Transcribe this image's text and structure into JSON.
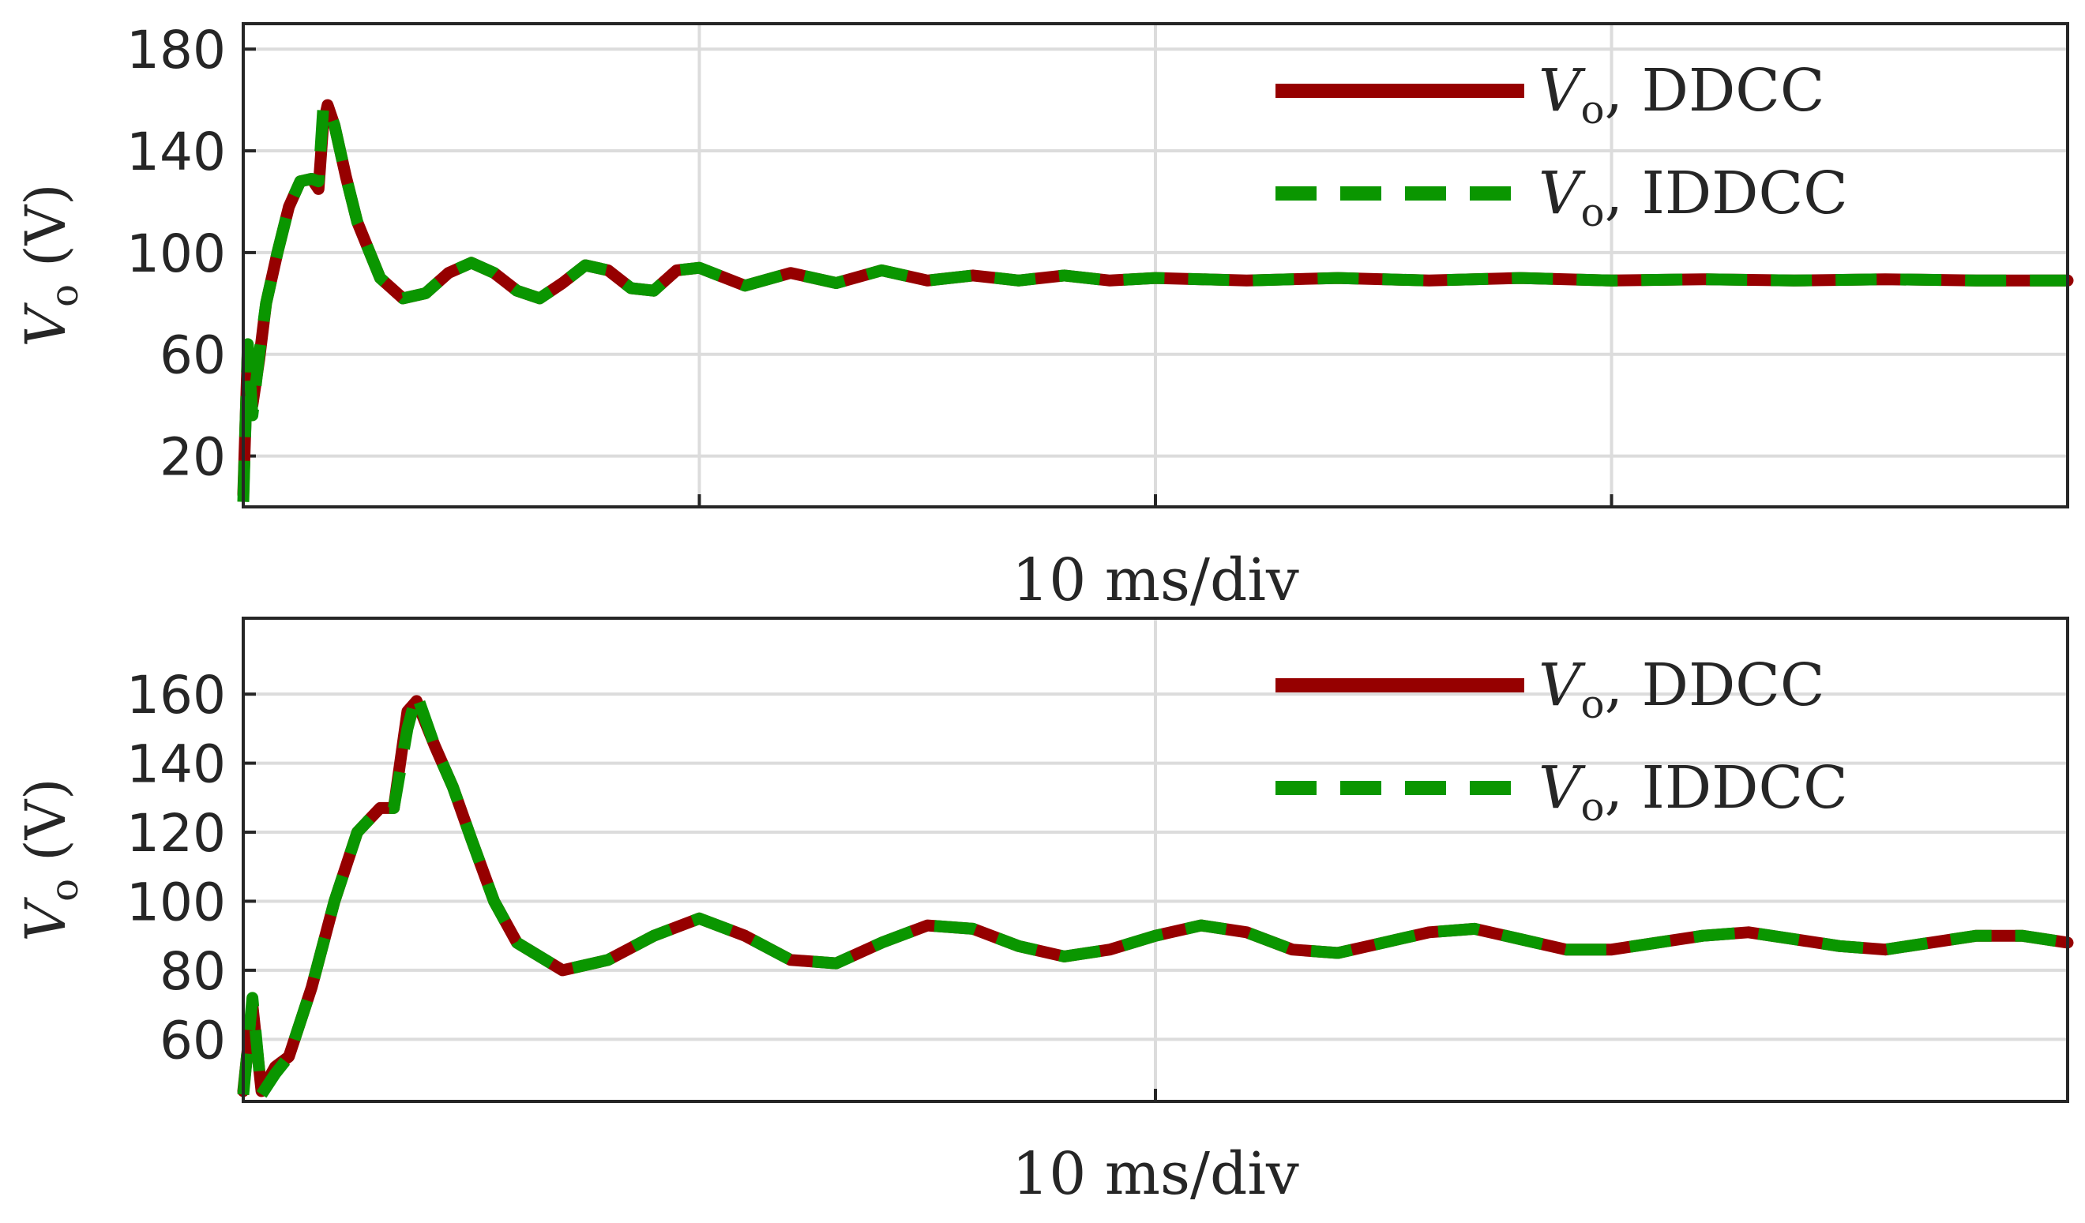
{
  "chart_data": [
    {
      "type": "line",
      "xlabel": "10 ms/div",
      "ylabel": {
        "var": "V",
        "sub": "o",
        "unit": "(V)"
      },
      "ylim": [
        0,
        190
      ],
      "yticks": [
        20,
        60,
        100,
        140,
        180
      ],
      "xlim": [
        0,
        80
      ],
      "xgrid": [
        0,
        20,
        40,
        60,
        80
      ],
      "grid": true,
      "legend_position": "top-right",
      "series": [
        {
          "name": "Vo, DDCC",
          "legend": {
            "var": "V",
            "sub": "o",
            "text": ", DDCC"
          },
          "style": "solid",
          "color": "#960000",
          "x": [
            0,
            0.2,
            0.4,
            0.7,
            1.0,
            1.5,
            2.0,
            2.5,
            3.0,
            3.3,
            3.5,
            3.7,
            4.0,
            4.5,
            5.0,
            6.0,
            7.0,
            8.0,
            9.0,
            10.0,
            11.0,
            12.0,
            13.0,
            14.0,
            15.0,
            16.0,
            17.0,
            18.0,
            19.0,
            20.0,
            22.0,
            24.0,
            26.0,
            28.0,
            30.0,
            32.0,
            34.0,
            36.0,
            38.0,
            40.0,
            44.0,
            48.0,
            52.0,
            56.0,
            60.0,
            64.0,
            68.0,
            72.0,
            76.0,
            80.0
          ],
          "values": [
            5,
            62,
            40,
            58,
            80,
            100,
            118,
            128,
            129,
            125,
            150,
            158,
            150,
            130,
            112,
            90,
            82,
            84,
            92,
            96,
            92,
            85,
            82,
            88,
            95,
            93,
            86,
            85,
            93,
            94,
            87,
            92,
            88,
            93,
            89,
            91,
            89,
            91,
            89,
            90,
            89,
            90,
            89,
            90,
            89,
            89.5,
            89,
            89.5,
            89,
            89
          ]
        },
        {
          "name": "Vo, IDDCC",
          "legend": {
            "var": "V",
            "sub": "o",
            "text": ", IDDCC"
          },
          "style": "dashed",
          "color": "#0A9600",
          "x": [
            0,
            0.2,
            0.4,
            0.7,
            1.0,
            1.5,
            2.0,
            2.5,
            3.0,
            3.3,
            3.5,
            3.7,
            4.0,
            4.5,
            5.0,
            6.0,
            7.0,
            8.0,
            9.0,
            10.0,
            11.0,
            12.0,
            13.0,
            14.0,
            15.0,
            16.0,
            17.0,
            18.0,
            19.0,
            20.0,
            22.0,
            24.0,
            26.0,
            28.0,
            30.0,
            32.0,
            34.0,
            36.0,
            38.0,
            40.0,
            44.0,
            48.0,
            52.0,
            56.0,
            60.0,
            64.0,
            68.0,
            72.0,
            76.0,
            80.0
          ],
          "values": [
            2,
            64,
            36,
            60,
            80,
            100,
            118,
            128,
            129,
            128,
            156,
            158,
            150,
            130,
            112,
            90,
            82,
            84,
            92,
            96,
            92,
            85,
            82,
            88,
            95,
            93,
            86,
            85,
            93,
            94,
            87,
            92,
            88,
            93,
            89,
            91,
            89,
            91,
            89,
            90,
            89,
            90,
            89,
            90,
            89,
            89.5,
            89,
            89.5,
            89,
            89
          ]
        }
      ]
    },
    {
      "type": "line",
      "xlabel": "10 ms/div",
      "ylabel": {
        "var": "V",
        "sub": "o",
        "unit": "(V)"
      },
      "ylim": [
        42,
        182
      ],
      "yticks": [
        60,
        80,
        100,
        120,
        140,
        160
      ],
      "xlim": [
        0,
        40
      ],
      "xgrid": [
        0,
        20,
        40
      ],
      "grid": true,
      "legend_position": "top-right",
      "series": [
        {
          "name": "Vo, DDCC",
          "legend": {
            "var": "V",
            "sub": "o",
            "text": ", DDCC"
          },
          "style": "solid",
          "color": "#960000",
          "x": [
            0,
            0.2,
            0.4,
            0.7,
            1.0,
            1.5,
            2.0,
            2.5,
            3.0,
            3.3,
            3.6,
            3.8,
            4.2,
            4.6,
            5.0,
            5.5,
            6.0,
            7.0,
            8.0,
            9.0,
            10.0,
            11.0,
            12.0,
            13.0,
            14.0,
            15.0,
            16.0,
            17.0,
            18.0,
            19.0,
            20.0,
            21.0,
            22.0,
            23.0,
            24.0,
            25.0,
            26.0,
            27.0,
            28.0,
            29.0,
            30.0,
            31.0,
            32.0,
            33.0,
            34.0,
            35.0,
            36.0,
            37.0,
            38.0,
            39.0,
            40.0
          ],
          "values": [
            45,
            70,
            45,
            52,
            55,
            75,
            100,
            120,
            127,
            127,
            155,
            158,
            145,
            133,
            118,
            100,
            88,
            80,
            83,
            90,
            95,
            90,
            83,
            82,
            88,
            93,
            92,
            87,
            84,
            86,
            90,
            93,
            91,
            86,
            85,
            88,
            91,
            92,
            89,
            86,
            86,
            88,
            90,
            91,
            89,
            87,
            86,
            88,
            90,
            90,
            88
          ]
        },
        {
          "name": "Vo, IDDCC",
          "legend": {
            "var": "V",
            "sub": "o",
            "text": ", IDDCC"
          },
          "style": "dashed",
          "color": "#0A9600",
          "x": [
            0,
            0.2,
            0.4,
            0.7,
            1.0,
            1.5,
            2.0,
            2.5,
            3.0,
            3.3,
            3.6,
            3.8,
            4.2,
            4.6,
            5.0,
            5.5,
            6.0,
            7.0,
            8.0,
            9.0,
            10.0,
            11.0,
            12.0,
            13.0,
            14.0,
            15.0,
            16.0,
            17.0,
            18.0,
            19.0,
            20.0,
            21.0,
            22.0,
            23.0,
            24.0,
            25.0,
            26.0,
            27.0,
            28.0,
            29.0,
            30.0,
            31.0,
            32.0,
            33.0,
            34.0,
            35.0,
            36.0,
            37.0,
            38.0,
            39.0,
            40.0
          ],
          "values": [
            44,
            72,
            44,
            50,
            55,
            75,
            100,
            120,
            127,
            127,
            150,
            160,
            145,
            133,
            118,
            100,
            88,
            80,
            83,
            90,
            95,
            90,
            83,
            82,
            88,
            93,
            92,
            87,
            84,
            86,
            90,
            93,
            91,
            86,
            85,
            88,
            91,
            92,
            89,
            86,
            86,
            88,
            90,
            91,
            89,
            87,
            86,
            88,
            90,
            90,
            88
          ]
        }
      ]
    }
  ]
}
